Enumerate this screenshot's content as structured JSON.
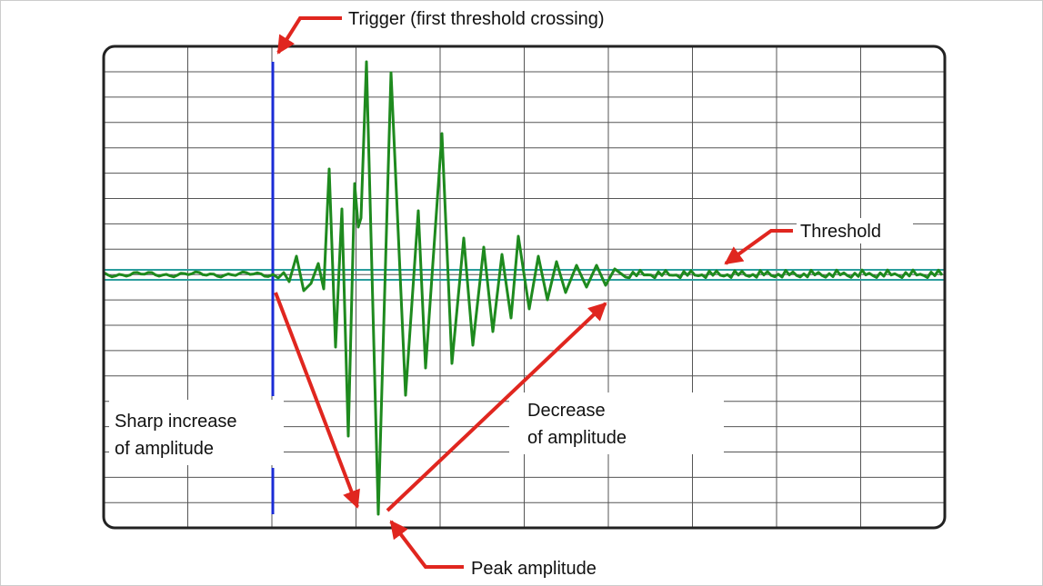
{
  "annotations": {
    "trigger": "Trigger (first threshold crossing)",
    "threshold": "Threshold",
    "sharp_increase": [
      "Sharp increase",
      "of amplitude"
    ],
    "decrease": [
      "Decrease",
      "of amplitude"
    ],
    "peak": "Peak amplitude"
  }
}
